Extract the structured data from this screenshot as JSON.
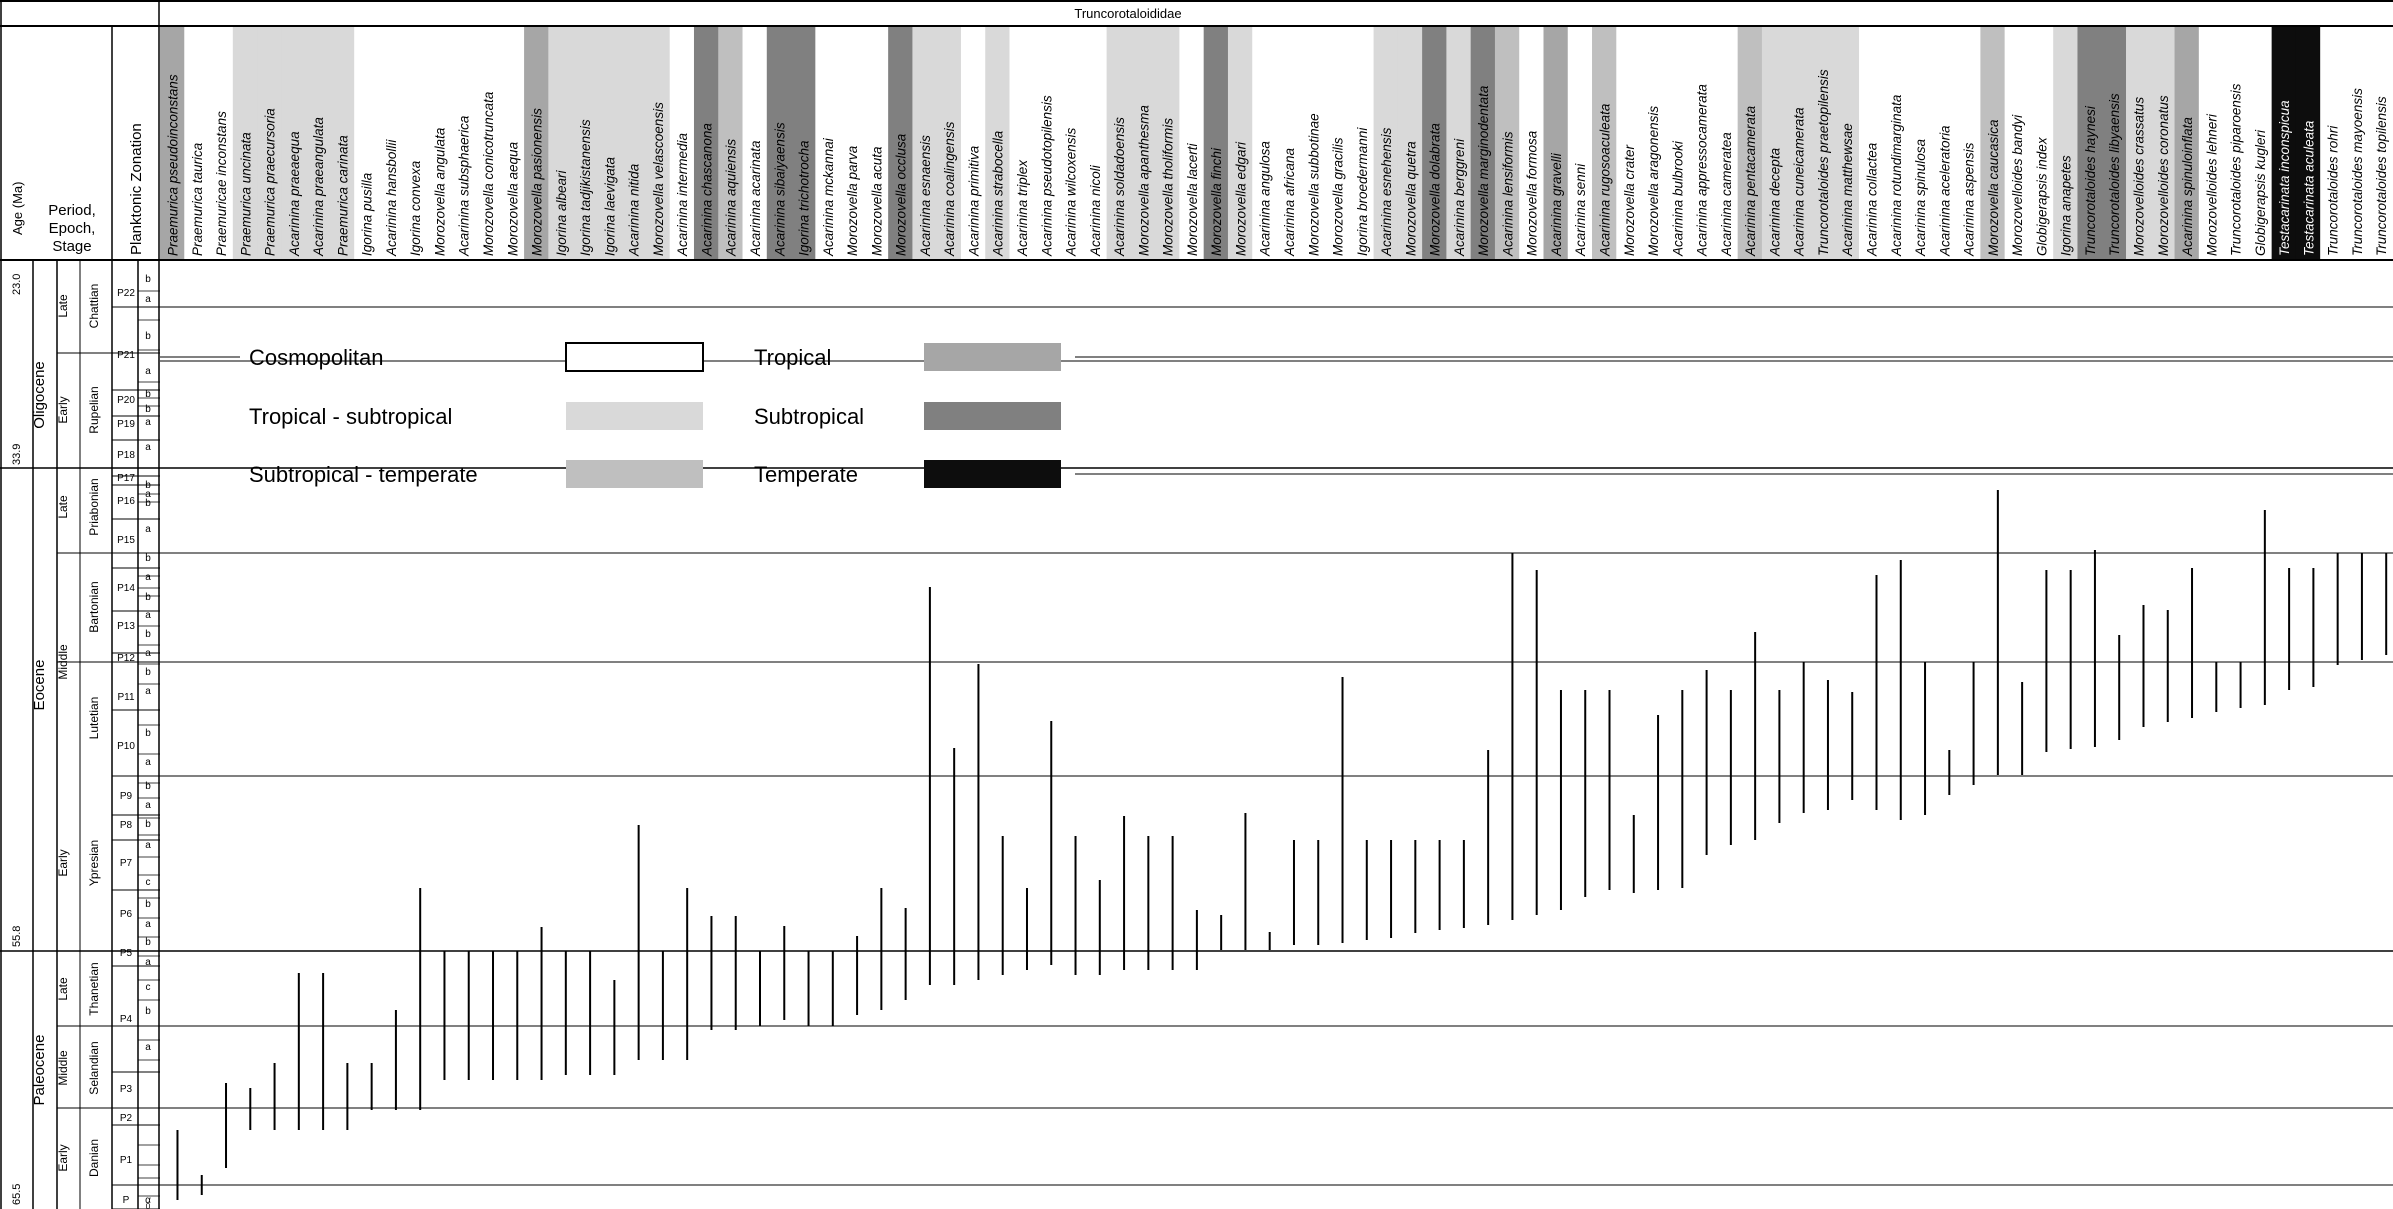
{
  "family_title": "Truncorotaloididae",
  "headers": {
    "age": "Age (Ma)",
    "period_epoch_stage": [
      "Period,",
      "Epoch,",
      "Stage"
    ],
    "zonation": "Planktonic Zonation"
  },
  "age_labels": [
    "23.0",
    "33.9",
    "55.8",
    "65.5"
  ],
  "epochs": [
    "Oligocene",
    "Eocene",
    "Paleocene"
  ],
  "subepochs": [
    "Late",
    "Early",
    "Late",
    "Middle",
    "Early",
    "Late",
    "Middle",
    "Early"
  ],
  "stages": [
    "Chattian",
    "Rupelian",
    "Priabonian",
    "Bartonian",
    "Lutetian",
    "Ypresian",
    "Thanetian",
    "Selandian",
    "Danian"
  ],
  "zones": [
    "P22",
    "P21",
    "P20",
    "P19",
    "P18",
    "P17",
    "P16",
    "P15",
    "P14",
    "P13",
    "P12",
    "P11",
    "P10",
    "P9",
    "P8",
    "P7",
    "P6",
    "P5",
    "P4",
    "P3",
    "P2",
    "P1",
    "P"
  ],
  "subzones": [
    "b",
    "a",
    "b",
    "a",
    "b",
    "b",
    "a",
    "a",
    "b",
    "a",
    "b",
    "a",
    "b",
    "a",
    "b",
    "a",
    "b",
    "a",
    "b",
    "a",
    "b",
    "a",
    "b",
    "a",
    "b",
    "a",
    "c",
    "b",
    "a",
    "b",
    "a",
    "c",
    "b",
    "a",
    "α",
    "0"
  ],
  "legend": {
    "items": [
      {
        "label": "Cosmopolitan",
        "color": "#ffffff"
      },
      {
        "label": "Tropical",
        "color": "#a6a6a6"
      },
      {
        "label": "Tropical - subtropical",
        "color": "#d9d9d9"
      },
      {
        "label": "Subtropical",
        "color": "#808080"
      },
      {
        "label": "Subtropical - temperate",
        "color": "#bfbfbf"
      },
      {
        "label": "Temperate",
        "color": "#0d0d0d"
      }
    ]
  },
  "species": [
    {
      "name": "Praemurica pseudoinconstans",
      "habitat": "tropical"
    },
    {
      "name": "Praemurica taurica",
      "habitat": "cosmopolitan"
    },
    {
      "name": "Praemuricae inconstans",
      "habitat": "cosmopolitan"
    },
    {
      "name": "Praemurica uncinata",
      "habitat": "tropical-subtropical"
    },
    {
      "name": "Praemurica praecursoria",
      "habitat": "tropical-subtropical"
    },
    {
      "name": "Acarinina praeaequa",
      "habitat": "tropical-subtropical"
    },
    {
      "name": "Acarinina praeangulata",
      "habitat": "tropical-subtropical"
    },
    {
      "name": "Praemurica carinata",
      "habitat": "tropical-subtropical"
    },
    {
      "name": "Igorina pusilla",
      "habitat": "cosmopolitan"
    },
    {
      "name": "Acarinina hansbollii",
      "habitat": "cosmopolitan"
    },
    {
      "name": "Igorina convexa",
      "habitat": "cosmopolitan"
    },
    {
      "name": "Morozovella angulata",
      "habitat": "cosmopolitan"
    },
    {
      "name": "Acarinina subsphaerica",
      "habitat": "cosmopolitan"
    },
    {
      "name": "Morozovella conicotruncata",
      "habitat": "cosmopolitan"
    },
    {
      "name": "Morozovella aequa",
      "habitat": "cosmopolitan"
    },
    {
      "name": "Morozovella pasionensis",
      "habitat": "tropical"
    },
    {
      "name": "Igorina albeari",
      "habitat": "tropical-subtropical"
    },
    {
      "name": "Igorina tadjikistanensis",
      "habitat": "tropical-subtropical"
    },
    {
      "name": "Igorina laevigata",
      "habitat": "tropical-subtropical"
    },
    {
      "name": "Acarinina nitida",
      "habitat": "tropical-subtropical"
    },
    {
      "name": "Morozovella velascoensis",
      "habitat": "tropical-subtropical"
    },
    {
      "name": "Acarinina intermedia",
      "habitat": "cosmopolitan"
    },
    {
      "name": "Acarinina chascanona",
      "habitat": "subtropical"
    },
    {
      "name": "Acarinina aquiensis",
      "habitat": "subtropical-temperate"
    },
    {
      "name": "Acarinina acarinata",
      "habitat": "cosmopolitan"
    },
    {
      "name": "Acarinina sibaiyaensis",
      "habitat": "subtropical"
    },
    {
      "name": "Igorina trichotrocha",
      "habitat": "subtropical"
    },
    {
      "name": "Acarinina mckannai",
      "habitat": "cosmopolitan"
    },
    {
      "name": "Morozovella parva",
      "habitat": "cosmopolitan"
    },
    {
      "name": "Morozovella acuta",
      "habitat": "cosmopolitan"
    },
    {
      "name": "Morozovella occlusa",
      "habitat": "subtropical"
    },
    {
      "name": "Acarinina esnaensis",
      "habitat": "tropical-subtropical"
    },
    {
      "name": "Acarinina coalingensis",
      "habitat": "tropical-subtropical"
    },
    {
      "name": "Acarinina primitiva",
      "habitat": "cosmopolitan"
    },
    {
      "name": "Acarinina strabocella",
      "habitat": "tropical-subtropical"
    },
    {
      "name": "Acarinina triplex",
      "habitat": "cosmopolitan"
    },
    {
      "name": "Acarinina pseudotopilensis",
      "habitat": "cosmopolitan"
    },
    {
      "name": "Acarinina wilcoxensis",
      "habitat": "cosmopolitan"
    },
    {
      "name": "Acarinina nicoli",
      "habitat": "cosmopolitan"
    },
    {
      "name": "Acarinina soldadoensis",
      "habitat": "tropical-subtropical"
    },
    {
      "name": "Morozovella apanthesma",
      "habitat": "tropical-subtropical"
    },
    {
      "name": "Morozovella tholiformis",
      "habitat": "tropical-subtropical"
    },
    {
      "name": "Morozovella lacerti",
      "habitat": "cosmopolitan"
    },
    {
      "name": "Morozovella finchi",
      "habitat": "subtropical"
    },
    {
      "name": "Morozovella edgari",
      "habitat": "tropical-subtropical"
    },
    {
      "name": "Acarinina angulosa",
      "habitat": "cosmopolitan"
    },
    {
      "name": "Acarinina africana",
      "habitat": "cosmopolitan"
    },
    {
      "name": "Morozovella subbotinae",
      "habitat": "cosmopolitan"
    },
    {
      "name": "Morozovella gracilis",
      "habitat": "cosmopolitan"
    },
    {
      "name": "Igorina broedermanni",
      "habitat": "cosmopolitan"
    },
    {
      "name": "Acarinina esnehensis",
      "habitat": "tropical-subtropical"
    },
    {
      "name": "Morozovella quetra",
      "habitat": "tropical-subtropical"
    },
    {
      "name": "Morozovella dolabrata",
      "habitat": "subtropical"
    },
    {
      "name": "Acarinina berggreni",
      "habitat": "tropical-subtropical"
    },
    {
      "name": "Morozovella marginodentata",
      "habitat": "subtropical"
    },
    {
      "name": "Acarinina lensiformis",
      "habitat": "subtropical-temperate"
    },
    {
      "name": "Morozovella formosa",
      "habitat": "cosmopolitan"
    },
    {
      "name": "Acarinina gravelli",
      "habitat": "tropical"
    },
    {
      "name": "Acarinina senni",
      "habitat": "cosmopolitan"
    },
    {
      "name": "Acarinina rugosoaculeata",
      "habitat": "subtropical-temperate"
    },
    {
      "name": "Morozovella crater",
      "habitat": "cosmopolitan"
    },
    {
      "name": "Morozovella aragonensis",
      "habitat": "cosmopolitan"
    },
    {
      "name": "Acarinina bulbrooki",
      "habitat": "cosmopolitan"
    },
    {
      "name": "Acarinina appressocamerata",
      "habitat": "cosmopolitan"
    },
    {
      "name": "Acarinina cameratea",
      "habitat": "cosmopolitan"
    },
    {
      "name": "Acarinina pentacamerata",
      "habitat": "subtropical-temperate"
    },
    {
      "name": "Acarinina decepta",
      "habitat": "tropical-subtropical"
    },
    {
      "name": "Acarinina cuneicamerata",
      "habitat": "tropical-subtropical"
    },
    {
      "name": "Truncorotaloides praetopilensis",
      "habitat": "tropical-subtropical"
    },
    {
      "name": "Acarinina matthewsae",
      "habitat": "tropical-subtropical"
    },
    {
      "name": "Acarinina collactea",
      "habitat": "cosmopolitan"
    },
    {
      "name": "Acarinina rotundimarginata",
      "habitat": "cosmopolitan"
    },
    {
      "name": "Acarinina spinulosa",
      "habitat": "cosmopolitan"
    },
    {
      "name": "Acarinina aceleratoria",
      "habitat": "cosmopolitan"
    },
    {
      "name": "Acarinina aspensis",
      "habitat": "cosmopolitan"
    },
    {
      "name": "Morozovella caucasica",
      "habitat": "subtropical-temperate"
    },
    {
      "name": "Morozovelloides bandyi",
      "habitat": "cosmopolitan"
    },
    {
      "name": "Globigerapsis index",
      "habitat": "cosmopolitan"
    },
    {
      "name": "Igorina anapetes",
      "habitat": "tropical-subtropical"
    },
    {
      "name": "Truncorotaloides haynesi",
      "habitat": "subtropical"
    },
    {
      "name": "Truncorotaloides libyaensis",
      "habitat": "subtropical"
    },
    {
      "name": "Morozovelloides crassatus",
      "habitat": "tropical-subtropical"
    },
    {
      "name": "Morozovelloides coronatus",
      "habitat": "tropical-subtropical"
    },
    {
      "name": "Acarinina spinuloinflata",
      "habitat": "tropical"
    },
    {
      "name": "Morozovelloides lehneri",
      "habitat": "cosmopolitan"
    },
    {
      "name": "Truncorotaloides piparoensis",
      "habitat": "cosmopolitan"
    },
    {
      "name": "Globigerapsis kugleri",
      "habitat": "cosmopolitan"
    },
    {
      "name": "Testacarinata inconspicua",
      "habitat": "temperate"
    },
    {
      "name": "Testacarinata aculeata",
      "habitat": "temperate"
    },
    {
      "name": "Truncorotaloides rohri",
      "habitat": "cosmopolitan"
    },
    {
      "name": "Truncorotaloides mayoensis",
      "habitat": "cosmopolitan"
    },
    {
      "name": "Truncorotaloides topilensis",
      "habitat": "cosmopolitan"
    }
  ]
}
